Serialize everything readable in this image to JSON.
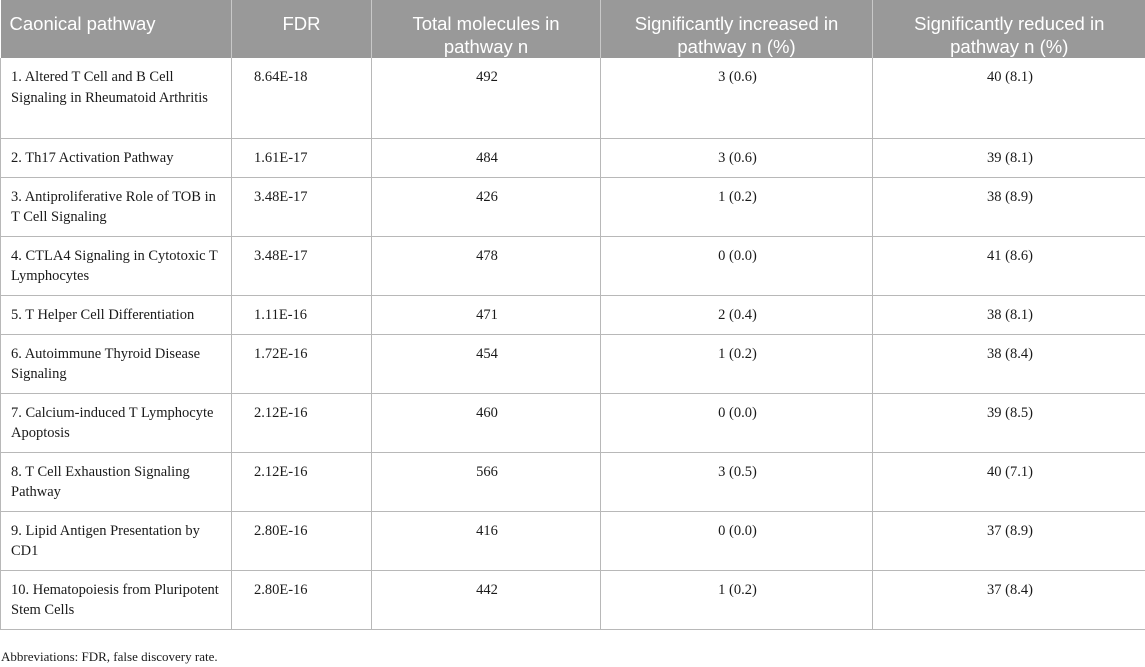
{
  "table": {
    "headers": [
      "Caonical pathway",
      "FDR",
      "Total molecules in pathway n",
      "Significantly increased in pathway n (%)",
      "Significantly reduced in pathway n (%)"
    ],
    "rows": [
      [
        "1. Altered T Cell and B Cell Signaling in Rheumatoid Arthritis",
        "8.64E-18",
        "492",
        "3 (0.6)",
        "40 (8.1)"
      ],
      [
        "2. Th17 Activation Pathway",
        "1.61E-17",
        "484",
        "3 (0.6)",
        "39 (8.1)"
      ],
      [
        "3. Antiproliferative Role of TOB in T Cell Signaling",
        "3.48E-17",
        "426",
        "1 (0.2)",
        "38 (8.9)"
      ],
      [
        "4. CTLA4 Signaling in Cytotoxic T Lymphocytes",
        "3.48E-17",
        "478",
        "0 (0.0)",
        "41 (8.6)"
      ],
      [
        "5. T Helper Cell Differentiation",
        "1.11E-16",
        "471",
        "2 (0.4)",
        "38 (8.1)"
      ],
      [
        "6. Autoimmune Thyroid Disease Signaling",
        "1.72E-16",
        "454",
        "1 (0.2)",
        "38 (8.4)"
      ],
      [
        "7. Calcium-induced T Lymphocyte Apoptosis",
        "2.12E-16",
        "460",
        "0 (0.0)",
        "39 (8.5)"
      ],
      [
        "8. T Cell Exhaustion Signaling Pathway",
        "2.12E-16",
        "566",
        "3 (0.5)",
        "40 (7.1)"
      ],
      [
        "9. Lipid Antigen Presentation by CD1",
        "2.80E-16",
        "416",
        "0 (0.0)",
        "37 (8.9)"
      ],
      [
        "10. Hematopoiesis from Pluripotent Stem Cells",
        "2.80E-16",
        "442",
        "1 (0.2)",
        "37 (8.4)"
      ]
    ]
  },
  "footnote": "Abbreviations: FDR, false discovery rate."
}
